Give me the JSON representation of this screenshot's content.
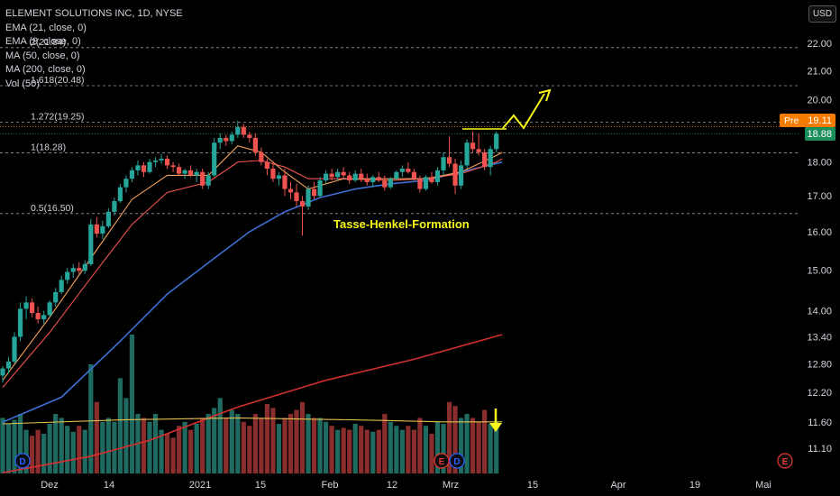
{
  "header": {
    "symbol_line": "ELEMENT SOLUTIONS INC, 1D, NYSE",
    "indicators": [
      "EMA (21, close, 0)",
      "EMA (9, close, 0)",
      "MA (50, close, 0)",
      "MA (200, close, 0)",
      "Vol (50)"
    ],
    "currency": "USD"
  },
  "colors": {
    "up": "#26a69a",
    "down": "#ef5350",
    "ema21": "#ef5350",
    "ema9": "#f7a35c",
    "ma50": "#3d6fd0",
    "ma200": "#d32f2f",
    "vol_ma": "#e0c050",
    "annotation": "#f7f71a",
    "pre_badge": "#f57c00",
    "price_badge": "#1b8f5a"
  },
  "chart_data": {
    "type": "candlestick",
    "y_axis": {
      "scale": "log",
      "ticks": [
        22.0,
        21.0,
        20.0,
        19.0,
        18.0,
        17.0,
        16.0,
        15.0,
        14.0,
        13.4,
        12.8,
        12.2,
        11.6,
        11.1
      ],
      "tick_labels": [
        "22.00",
        "21.00",
        "20.00",
        "19.00",
        "18.00",
        "17.00",
        "16.00",
        "15.00",
        "14.00",
        "13.40",
        "12.80",
        "12.20",
        "11.60",
        "11.10"
      ]
    },
    "x_axis": {
      "ticks": [
        "Dez",
        "14",
        "2021",
        "15",
        "Feb",
        "12",
        "Mrz",
        "15",
        "Apr",
        "19",
        "Mai"
      ]
    },
    "fib_levels": [
      {
        "label": "2(21.84)",
        "value": 21.84
      },
      {
        "label": "1.618(20.48)",
        "value": 20.48
      },
      {
        "label": "1.272(19.25)",
        "value": 19.25
      },
      {
        "label": "1(18.28)",
        "value": 18.28
      },
      {
        "label": "0.5(16.50)",
        "value": 16.5
      }
    ],
    "annotation_text": "Tasse-Henkel-Formation",
    "price_badges": [
      {
        "label": "Pre",
        "value": "19.11"
      },
      {
        "label": "",
        "value": "18.88"
      }
    ],
    "event_markers": [
      "D",
      "E",
      "D",
      "E"
    ],
    "candles": [
      {
        "o": 12.55,
        "h": 12.75,
        "l": 12.4,
        "c": 12.7,
        "v": 0.28
      },
      {
        "o": 12.7,
        "h": 12.95,
        "l": 12.6,
        "c": 12.85,
        "v": 0.25
      },
      {
        "o": 12.85,
        "h": 13.5,
        "l": 12.8,
        "c": 13.4,
        "v": 0.27
      },
      {
        "o": 13.4,
        "h": 14.2,
        "l": 13.3,
        "c": 14.05,
        "v": 0.3
      },
      {
        "o": 14.05,
        "h": 14.35,
        "l": 13.8,
        "c": 14.2,
        "v": 0.22
      },
      {
        "o": 14.2,
        "h": 14.3,
        "l": 13.85,
        "c": 13.95,
        "v": 0.19
      },
      {
        "o": 13.95,
        "h": 14.1,
        "l": 13.7,
        "c": 13.8,
        "v": 0.22
      },
      {
        "o": 13.8,
        "h": 14.0,
        "l": 13.7,
        "c": 13.9,
        "v": 0.2
      },
      {
        "o": 13.9,
        "h": 14.25,
        "l": 13.85,
        "c": 14.2,
        "v": 0.25
      },
      {
        "o": 14.2,
        "h": 14.55,
        "l": 14.1,
        "c": 14.45,
        "v": 0.3
      },
      {
        "o": 14.45,
        "h": 14.85,
        "l": 14.4,
        "c": 14.75,
        "v": 0.28
      },
      {
        "o": 14.75,
        "h": 15.05,
        "l": 14.65,
        "c": 14.95,
        "v": 0.24
      },
      {
        "o": 14.95,
        "h": 15.15,
        "l": 14.8,
        "c": 15.05,
        "v": 0.21
      },
      {
        "o": 15.05,
        "h": 15.2,
        "l": 14.9,
        "c": 14.98,
        "v": 0.24
      },
      {
        "o": 14.98,
        "h": 15.25,
        "l": 14.9,
        "c": 15.15,
        "v": 0.22
      },
      {
        "o": 15.15,
        "h": 16.35,
        "l": 15.1,
        "c": 16.2,
        "v": 0.55
      },
      {
        "o": 16.2,
        "h": 16.4,
        "l": 15.85,
        "c": 15.95,
        "v": 0.36
      },
      {
        "o": 15.95,
        "h": 16.3,
        "l": 15.8,
        "c": 16.15,
        "v": 0.26
      },
      {
        "o": 16.15,
        "h": 16.65,
        "l": 16.1,
        "c": 16.55,
        "v": 0.28
      },
      {
        "o": 16.55,
        "h": 16.95,
        "l": 16.45,
        "c": 16.85,
        "v": 0.26
      },
      {
        "o": 16.85,
        "h": 17.35,
        "l": 16.8,
        "c": 17.25,
        "v": 0.48
      },
      {
        "o": 17.25,
        "h": 17.6,
        "l": 17.1,
        "c": 17.5,
        "v": 0.38
      },
      {
        "o": 17.5,
        "h": 17.85,
        "l": 17.4,
        "c": 17.75,
        "v": 0.7
      },
      {
        "o": 17.75,
        "h": 18.05,
        "l": 17.6,
        "c": 17.9,
        "v": 0.3
      },
      {
        "o": 17.9,
        "h": 18.0,
        "l": 17.55,
        "c": 17.7,
        "v": 0.28
      },
      {
        "o": 17.7,
        "h": 18.1,
        "l": 17.65,
        "c": 18.0,
        "v": 0.26
      },
      {
        "o": 18.0,
        "h": 18.15,
        "l": 17.85,
        "c": 18.05,
        "v": 0.3
      },
      {
        "o": 18.05,
        "h": 18.25,
        "l": 17.95,
        "c": 18.1,
        "v": 0.22
      },
      {
        "o": 18.1,
        "h": 18.2,
        "l": 17.8,
        "c": 17.9,
        "v": 0.2
      },
      {
        "o": 17.9,
        "h": 18.0,
        "l": 17.7,
        "c": 17.85,
        "v": 0.18
      },
      {
        "o": 17.85,
        "h": 17.95,
        "l": 17.6,
        "c": 17.65,
        "v": 0.24
      },
      {
        "o": 17.65,
        "h": 17.8,
        "l": 17.5,
        "c": 17.75,
        "v": 0.26
      },
      {
        "o": 17.75,
        "h": 17.9,
        "l": 17.55,
        "c": 17.6,
        "v": 0.22
      },
      {
        "o": 17.6,
        "h": 17.8,
        "l": 17.4,
        "c": 17.7,
        "v": 0.25
      },
      {
        "o": 17.7,
        "h": 17.8,
        "l": 17.2,
        "c": 17.3,
        "v": 0.28
      },
      {
        "o": 17.3,
        "h": 17.7,
        "l": 17.2,
        "c": 17.6,
        "v": 0.3
      },
      {
        "o": 17.6,
        "h": 18.75,
        "l": 17.55,
        "c": 18.6,
        "v": 0.33
      },
      {
        "o": 18.6,
        "h": 18.9,
        "l": 18.4,
        "c": 18.75,
        "v": 0.38
      },
      {
        "o": 18.75,
        "h": 18.85,
        "l": 18.5,
        "c": 18.65,
        "v": 0.28
      },
      {
        "o": 18.65,
        "h": 18.95,
        "l": 18.55,
        "c": 18.85,
        "v": 0.32
      },
      {
        "o": 18.85,
        "h": 19.3,
        "l": 18.75,
        "c": 19.1,
        "v": 0.3
      },
      {
        "o": 19.1,
        "h": 19.2,
        "l": 18.75,
        "c": 18.85,
        "v": 0.26
      },
      {
        "o": 18.85,
        "h": 18.95,
        "l": 18.6,
        "c": 18.75,
        "v": 0.24
      },
      {
        "o": 18.75,
        "h": 18.9,
        "l": 18.2,
        "c": 18.3,
        "v": 0.3
      },
      {
        "o": 18.3,
        "h": 18.45,
        "l": 17.9,
        "c": 18.0,
        "v": 0.28
      },
      {
        "o": 18.0,
        "h": 18.1,
        "l": 17.6,
        "c": 17.8,
        "v": 0.35
      },
      {
        "o": 17.8,
        "h": 18.0,
        "l": 17.4,
        "c": 17.5,
        "v": 0.33
      },
      {
        "o": 17.5,
        "h": 17.7,
        "l": 17.3,
        "c": 17.6,
        "v": 0.25
      },
      {
        "o": 17.6,
        "h": 17.8,
        "l": 17.0,
        "c": 17.2,
        "v": 0.28
      },
      {
        "o": 17.2,
        "h": 17.4,
        "l": 16.9,
        "c": 17.1,
        "v": 0.3
      },
      {
        "o": 17.1,
        "h": 17.35,
        "l": 16.7,
        "c": 16.85,
        "v": 0.32
      },
      {
        "o": 16.85,
        "h": 17.0,
        "l": 15.9,
        "c": 16.7,
        "v": 0.36
      },
      {
        "o": 16.7,
        "h": 17.3,
        "l": 16.6,
        "c": 17.2,
        "v": 0.3
      },
      {
        "o": 17.2,
        "h": 17.4,
        "l": 16.9,
        "c": 17.0,
        "v": 0.28
      },
      {
        "o": 17.0,
        "h": 17.55,
        "l": 16.95,
        "c": 17.45,
        "v": 0.28
      },
      {
        "o": 17.45,
        "h": 17.75,
        "l": 17.35,
        "c": 17.65,
        "v": 0.26
      },
      {
        "o": 17.65,
        "h": 17.8,
        "l": 17.45,
        "c": 17.55,
        "v": 0.24
      },
      {
        "o": 17.55,
        "h": 17.8,
        "l": 17.45,
        "c": 17.7,
        "v": 0.22
      },
      {
        "o": 17.7,
        "h": 17.85,
        "l": 17.5,
        "c": 17.6,
        "v": 0.23
      },
      {
        "o": 17.6,
        "h": 17.7,
        "l": 17.35,
        "c": 17.45,
        "v": 0.22
      },
      {
        "o": 17.45,
        "h": 17.75,
        "l": 17.4,
        "c": 17.65,
        "v": 0.25
      },
      {
        "o": 17.65,
        "h": 17.8,
        "l": 17.4,
        "c": 17.5,
        "v": 0.24
      },
      {
        "o": 17.5,
        "h": 17.65,
        "l": 17.3,
        "c": 17.4,
        "v": 0.22
      },
      {
        "o": 17.4,
        "h": 17.6,
        "l": 17.25,
        "c": 17.55,
        "v": 0.21
      },
      {
        "o": 17.55,
        "h": 17.7,
        "l": 17.4,
        "c": 17.45,
        "v": 0.22
      },
      {
        "o": 17.45,
        "h": 17.6,
        "l": 17.15,
        "c": 17.25,
        "v": 0.3
      },
      {
        "o": 17.25,
        "h": 17.55,
        "l": 17.2,
        "c": 17.5,
        "v": 0.26
      },
      {
        "o": 17.5,
        "h": 17.75,
        "l": 17.45,
        "c": 17.7,
        "v": 0.24
      },
      {
        "o": 17.7,
        "h": 17.9,
        "l": 17.55,
        "c": 17.8,
        "v": 0.22
      },
      {
        "o": 17.8,
        "h": 18.0,
        "l": 17.65,
        "c": 17.7,
        "v": 0.24
      },
      {
        "o": 17.7,
        "h": 17.8,
        "l": 17.45,
        "c": 17.5,
        "v": 0.22
      },
      {
        "o": 17.5,
        "h": 17.6,
        "l": 17.1,
        "c": 17.2,
        "v": 0.28
      },
      {
        "o": 17.2,
        "h": 17.6,
        "l": 17.15,
        "c": 17.55,
        "v": 0.24
      },
      {
        "o": 17.55,
        "h": 17.7,
        "l": 17.35,
        "c": 17.4,
        "v": 0.2
      },
      {
        "o": 17.4,
        "h": 17.85,
        "l": 17.3,
        "c": 17.75,
        "v": 0.26
      },
      {
        "o": 17.75,
        "h": 18.3,
        "l": 17.6,
        "c": 18.15,
        "v": 0.25
      },
      {
        "o": 18.15,
        "h": 18.8,
        "l": 17.85,
        "c": 17.95,
        "v": 0.36
      },
      {
        "o": 17.95,
        "h": 18.1,
        "l": 17.05,
        "c": 17.3,
        "v": 0.34
      },
      {
        "o": 17.3,
        "h": 18.05,
        "l": 17.2,
        "c": 17.9,
        "v": 0.28
      },
      {
        "o": 17.9,
        "h": 18.7,
        "l": 17.8,
        "c": 18.6,
        "v": 0.3
      },
      {
        "o": 18.6,
        "h": 18.95,
        "l": 18.3,
        "c": 18.4,
        "v": 0.28
      },
      {
        "o": 18.4,
        "h": 18.9,
        "l": 18.2,
        "c": 18.3,
        "v": 0.26
      },
      {
        "o": 18.3,
        "h": 18.4,
        "l": 17.75,
        "c": 17.85,
        "v": 0.32
      },
      {
        "o": 17.85,
        "h": 18.5,
        "l": 17.6,
        "c": 18.4,
        "v": 0.25
      },
      {
        "o": 18.4,
        "h": 18.95,
        "l": 18.3,
        "c": 18.88,
        "v": 0.26
      }
    ],
    "moving_averages": {
      "ema9": [
        [
          0,
          12.45
        ],
        [
          8,
          13.85
        ],
        [
          15,
          15.3
        ],
        [
          22,
          16.9
        ],
        [
          28,
          17.6
        ],
        [
          35,
          17.6
        ],
        [
          40,
          18.5
        ],
        [
          44,
          18.3
        ],
        [
          48,
          17.7
        ],
        [
          52,
          17.2
        ],
        [
          58,
          17.5
        ],
        [
          66,
          17.5
        ],
        [
          72,
          17.5
        ],
        [
          78,
          17.7
        ],
        [
          84,
          18.2
        ],
        [
          85,
          18.3
        ]
      ],
      "ema21": [
        [
          0,
          12.3
        ],
        [
          8,
          13.5
        ],
        [
          15,
          14.8
        ],
        [
          22,
          16.2
        ],
        [
          28,
          17.1
        ],
        [
          35,
          17.4
        ],
        [
          40,
          18.0
        ],
        [
          44,
          18.05
        ],
        [
          48,
          17.85
        ],
        [
          52,
          17.5
        ],
        [
          58,
          17.5
        ],
        [
          66,
          17.45
        ],
        [
          72,
          17.5
        ],
        [
          78,
          17.65
        ],
        [
          84,
          18.0
        ],
        [
          85,
          18.1
        ]
      ],
      "ma50": [
        [
          0,
          11.6
        ],
        [
          10,
          12.1
        ],
        [
          20,
          13.3
        ],
        [
          28,
          14.4
        ],
        [
          36,
          15.3
        ],
        [
          42,
          16.0
        ],
        [
          48,
          16.55
        ],
        [
          54,
          16.95
        ],
        [
          60,
          17.2
        ],
        [
          66,
          17.35
        ],
        [
          72,
          17.45
        ],
        [
          78,
          17.7
        ],
        [
          85,
          18.0
        ]
      ],
      "ma200": [
        [
          0,
          10.65
        ],
        [
          15,
          10.95
        ],
        [
          25,
          11.25
        ],
        [
          40,
          11.9
        ],
        [
          55,
          12.45
        ],
        [
          70,
          12.9
        ],
        [
          85,
          13.45
        ]
      ],
      "vol_ma": [
        [
          0,
          0.25
        ],
        [
          20,
          0.27
        ],
        [
          40,
          0.28
        ],
        [
          60,
          0.27
        ],
        [
          75,
          0.26
        ],
        [
          85,
          0.26
        ]
      ]
    }
  }
}
